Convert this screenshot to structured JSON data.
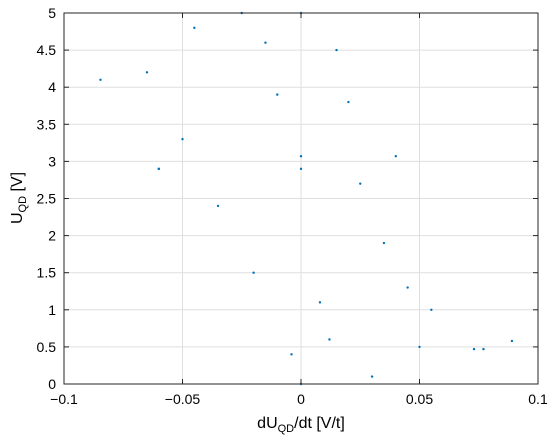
{
  "chart_data": {
    "type": "scatter",
    "title": "",
    "xlabel": {
      "base": "dU",
      "sub": "QD",
      "rest": "/dt [V/t]"
    },
    "ylabel": {
      "base": "U",
      "sub": "QD",
      "rest": " [V]"
    },
    "xlim": [
      -0.1,
      0.1
    ],
    "ylim": [
      0,
      5
    ],
    "x_ticks": [
      -0.1,
      -0.05,
      0,
      0.05,
      0.1
    ],
    "x_tick_labels": [
      "−0.1",
      "−0.05",
      "0",
      "0.05",
      "0.1"
    ],
    "y_ticks": [
      0,
      0.5,
      1,
      1.5,
      2,
      2.5,
      3,
      3.5,
      4,
      4.5,
      5
    ],
    "y_tick_labels": [
      "0",
      "0.5",
      "1",
      "1.5",
      "2",
      "2.5",
      "3",
      "3.5",
      "4",
      "4.5",
      "5"
    ],
    "grid": true,
    "legend": "none",
    "marker_color": "#0072BD",
    "series": [
      {
        "points": [
          [
            -0.08462,
            4.1
          ],
          [
            -0.06,
            2.9
          ],
          [
            -0.045,
            4.8
          ],
          [
            -0.025,
            5.0
          ],
          [
            0.0,
            5.0
          ],
          [
            0.0,
            0.0
          ],
          [
            0.04,
            3.07
          ],
          [
            0.0,
            3.07
          ],
          [
            -0.06,
            2.9
          ],
          [
            0.0,
            2.9
          ],
          [
            0.073,
            0.47
          ],
          [
            0.089,
            0.58
          ],
          [
            0.077,
            0.47
          ],
          [
            0.03,
            0.1
          ],
          [
            -0.02,
            1.5
          ],
          [
            -0.035,
            2.4
          ],
          [
            -0.05,
            3.3
          ],
          [
            -0.065,
            4.2
          ],
          [
            0.015,
            4.5
          ],
          [
            0.02,
            3.8
          ],
          [
            0.025,
            2.7
          ],
          [
            0.035,
            1.9
          ],
          [
            0.045,
            1.3
          ],
          [
            0.055,
            1.0
          ],
          [
            -0.01,
            3.9
          ],
          [
            -0.015,
            4.6
          ],
          [
            0.008,
            1.1
          ],
          [
            0.012,
            0.6
          ],
          [
            -0.004,
            0.4
          ],
          [
            0.05,
            0.5
          ]
        ]
      }
    ]
  }
}
